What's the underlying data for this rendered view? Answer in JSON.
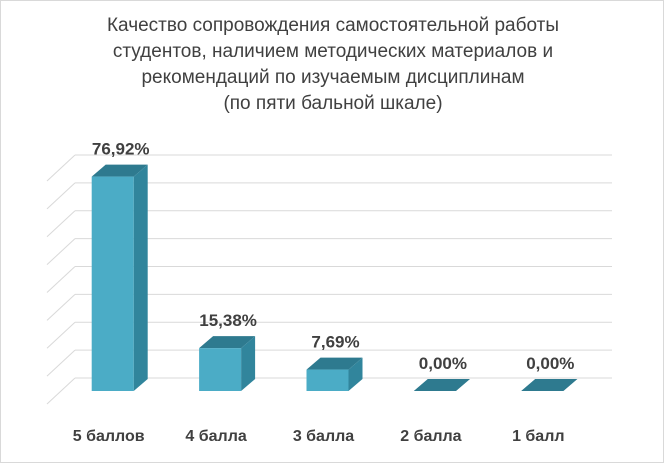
{
  "chart_data": {
    "type": "bar",
    "title_lines": [
      "Качество сопровождения самостоятельной работы",
      "студентов, наличием методических материалов и",
      "рекомендаций по изучаемым дисциплинам",
      "(по пяти бальной шкале)"
    ],
    "categories": [
      "5 баллов",
      "4 балла",
      "3  балла",
      "2 балла",
      "1 балл"
    ],
    "values": [
      76.92,
      15.38,
      7.69,
      0.0,
      0.0
    ],
    "data_labels": [
      "76,92%",
      "15,38%",
      "7,69%",
      "0,00%",
      "0,00%"
    ],
    "ylim": [
      0,
      80
    ],
    "grid": true,
    "legend": "none",
    "colors": {
      "front": "#4bacc6",
      "side": "#31859c",
      "top": "#2e7a8f",
      "grid": "#d9d9d9",
      "text": "#404040"
    }
  }
}
